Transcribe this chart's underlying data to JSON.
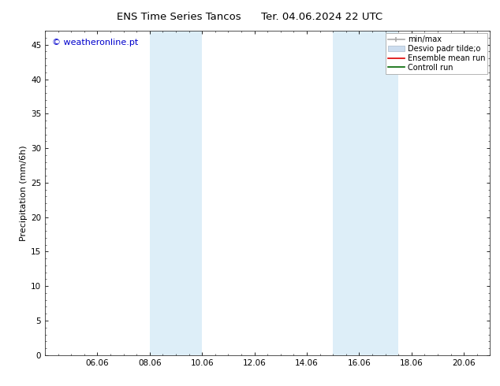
{
  "title_left": "ENS Time Series Tancos",
  "title_right": "Ter. 04.06.2024 22 UTC",
  "ylabel": "Precipitation (mm/6h)",
  "ylim": [
    0,
    47
  ],
  "yticks": [
    0,
    5,
    10,
    15,
    20,
    25,
    30,
    35,
    40,
    45
  ],
  "xtick_labels": [
    "06.06",
    "08.06",
    "10.06",
    "12.06",
    "14.06",
    "16.06",
    "18.06",
    "20.06"
  ],
  "xtick_positions": [
    2,
    4,
    6,
    8,
    10,
    12,
    14,
    16
  ],
  "xlim": [
    0,
    17
  ],
  "background_color": "#ffffff",
  "shaded_regions": [
    {
      "xmin": 4.0,
      "xmax": 6.0,
      "color": "#ddeef8"
    },
    {
      "xmin": 11.0,
      "xmax": 13.5,
      "color": "#ddeef8"
    }
  ],
  "legend_entries": [
    {
      "label": "min/max",
      "color": "#aaaaaa",
      "style": "line"
    },
    {
      "label": "Desvio padr tilde;o",
      "color": "#ccddef",
      "style": "patch"
    },
    {
      "label": "Ensemble mean run",
      "color": "#dd0000",
      "style": "line"
    },
    {
      "label": "Controll run",
      "color": "#006600",
      "style": "line"
    }
  ],
  "watermark_text": "© weatheronline.pt",
  "watermark_color": "#0000cc",
  "title_fontsize": 9.5,
  "ylabel_fontsize": 8,
  "tick_fontsize": 7.5,
  "legend_fontsize": 7,
  "watermark_fontsize": 8
}
